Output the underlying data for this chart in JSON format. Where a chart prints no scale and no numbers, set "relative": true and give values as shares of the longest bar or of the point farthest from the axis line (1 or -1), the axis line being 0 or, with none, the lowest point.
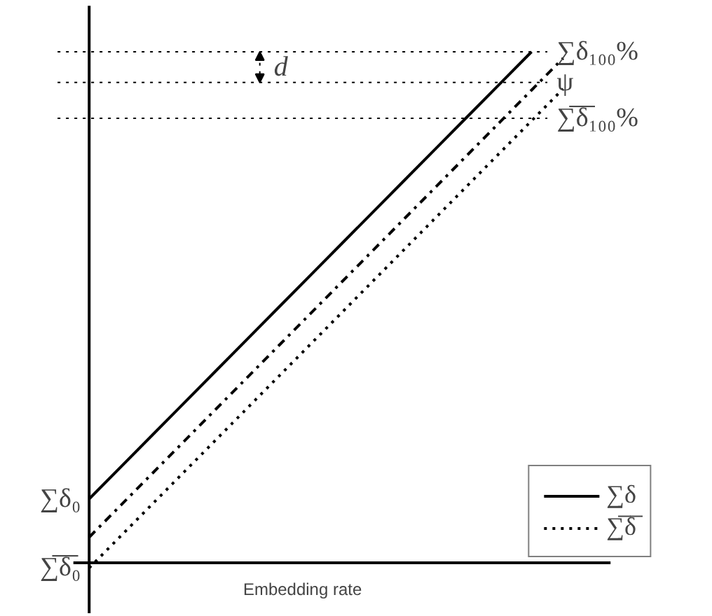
{
  "chart_data": {
    "type": "line",
    "relative": true,
    "xlabel": "Embedding rate",
    "legend": "bottom right",
    "grid": false,
    "categories": [
      null,
      null,
      null,
      null,
      null,
      null,
      null,
      null,
      null,
      null,
      null,
      null,
      null,
      null,
      null,
      null
    ],
    "series": [
      {
        "name": "∑δ",
        "color": "#000000",
        "line_style": "solid",
        "values": [
          0.125,
          0.1875,
          0.25,
          0.3125,
          0.375,
          0.4375,
          0.5,
          0.5625,
          0.625,
          0.6875,
          0.75,
          0.8125,
          0.875,
          0.9375,
          1.0,
          null
        ]
      },
      {
        "color": "#000000",
        "line_style": "dashdot",
        "values": [
          0.05,
          0.1125,
          0.175,
          0.2375,
          0.3,
          0.3625,
          0.425,
          0.4875,
          0.55,
          0.6125,
          0.675,
          0.7375,
          0.8,
          0.8625,
          0.925,
          0.9875
        ]
      },
      {
        "name": "∑̅δ̅",
        "color": "#000000",
        "line_style": "dotted",
        "values": [
          -0.01,
          0.0525,
          0.115,
          0.1775,
          0.24,
          0.3025,
          0.365,
          0.4275,
          0.49,
          0.5525,
          0.615,
          0.6775,
          0.74,
          0.8025,
          0.865,
          0.9275
        ]
      }
    ],
    "ref_lines": [
      {
        "axis": "y",
        "value": 1.0,
        "label": "∑δ₁₀₀%",
        "line_style": "dotted"
      },
      {
        "axis": "y",
        "value": 0.94,
        "label": "ψ",
        "line_style": "dotted"
      },
      {
        "axis": "y",
        "value": 0.87,
        "label": "∑̅δ̅₁₀₀%",
        "line_style": "dotted"
      }
    ],
    "annotations": [
      "d",
      "∑δ₀",
      "∑̅δ̅₀"
    ]
  }
}
